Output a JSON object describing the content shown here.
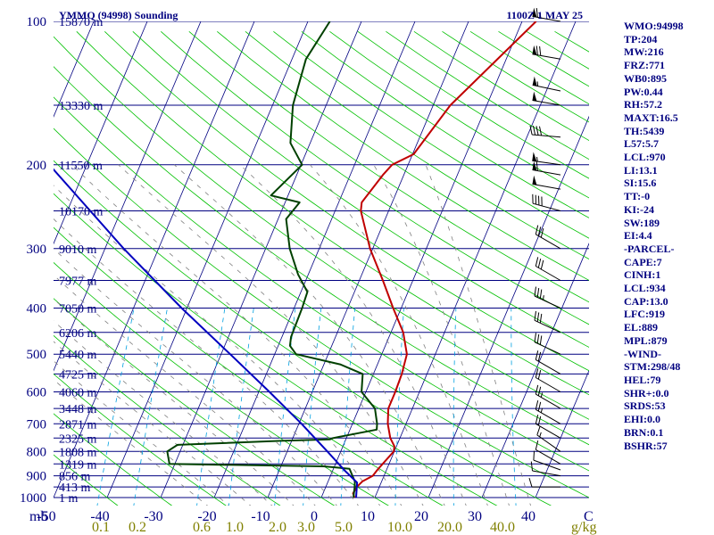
{
  "header": {
    "station": "YMMQ (94998) Sounding",
    "time": "1100Z  1 MAY 25"
  },
  "axis": {
    "y_unit": "mb",
    "x_unit": "C",
    "mixing_unit": "g/kg"
  },
  "chart_data": {
    "type": "line",
    "title": "YMMQ (94998) Sounding",
    "y_scale": "log-pressure",
    "ylim": [
      1000,
      100
    ],
    "xlim": [
      -50,
      50
    ],
    "pressure_ticks": [
      100,
      200,
      300,
      400,
      500,
      600,
      700,
      800,
      900,
      1000
    ],
    "temperature_ticks": [
      -50,
      -40,
      -30,
      -20,
      -10,
      0,
      10,
      20,
      30,
      40
    ],
    "mixing_ratio_ticks": [
      "0.1",
      "0.2",
      "0.6",
      "1.0",
      "2.0",
      "3.0",
      "5.0",
      "10.0",
      "20.0",
      "40.0"
    ],
    "height_labels": [
      {
        "p": 100,
        "label": "15870 m"
      },
      {
        "p": 150,
        "label": "13330 m"
      },
      {
        "p": 200,
        "label": "11550 m"
      },
      {
        "p": 250,
        "label": "10170 m"
      },
      {
        "p": 300,
        "label": "9010 m"
      },
      {
        "p": 350,
        "label": "7977 m"
      },
      {
        "p": 400,
        "label": "7050 m"
      },
      {
        "p": 450,
        "label": "6206 m"
      },
      {
        "p": 500,
        "label": "5440 m"
      },
      {
        "p": 550,
        "label": "4725 m"
      },
      {
        "p": 600,
        "label": "4060 m"
      },
      {
        "p": 650,
        "label": "3448 m"
      },
      {
        "p": 700,
        "label": "2871 m"
      },
      {
        "p": 750,
        "label": "2325 m"
      },
      {
        "p": 800,
        "label": "1808 m"
      },
      {
        "p": 850,
        "label": "1319 m"
      },
      {
        "p": 900,
        "label": "856 m"
      },
      {
        "p": 950,
        "label": "413 m"
      },
      {
        "p": 1000,
        "label": "1 m"
      }
    ],
    "series": [
      {
        "role": "temperature",
        "points": [
          [
            1000,
            6.2
          ],
          [
            980,
            5.6
          ],
          [
            950,
            5.8
          ],
          [
            925,
            6.4
          ],
          [
            900,
            7.9
          ],
          [
            875,
            8.3
          ],
          [
            850,
            8.8
          ],
          [
            800,
            9.9
          ],
          [
            780,
            9.6
          ],
          [
            750,
            8.2
          ],
          [
            700,
            6.6
          ],
          [
            650,
            5.5
          ],
          [
            600,
            5.5
          ],
          [
            550,
            5.3
          ],
          [
            500,
            4.7
          ],
          [
            450,
            2.3
          ],
          [
            400,
            -1.5
          ],
          [
            350,
            -5.6
          ],
          [
            300,
            -10.5
          ],
          [
            250,
            -15.2
          ],
          [
            240,
            -15.7
          ],
          [
            210,
            -13.9
          ],
          [
            200,
            -13.0
          ],
          [
            190,
            -9.8
          ],
          [
            150,
            -6.8
          ],
          [
            100,
            2.6
          ]
        ]
      },
      {
        "role": "dewpoint",
        "points": [
          [
            1000,
            6.0
          ],
          [
            950,
            5.4
          ],
          [
            925,
            5.0
          ],
          [
            900,
            4.1
          ],
          [
            870,
            3.0
          ],
          [
            860,
            -2.0
          ],
          [
            850,
            -31.0
          ],
          [
            800,
            -32.4
          ],
          [
            775,
            -31.0
          ],
          [
            760,
            -12.0
          ],
          [
            755,
            -3.0
          ],
          [
            750,
            -2.5
          ],
          [
            720,
            5.0
          ],
          [
            700,
            4.6
          ],
          [
            650,
            3.0
          ],
          [
            600,
            -0.8
          ],
          [
            550,
            -2.0
          ],
          [
            525,
            -7.0
          ],
          [
            500,
            -16.0
          ],
          [
            480,
            -17.8
          ],
          [
            460,
            -18.3
          ],
          [
            400,
            -18.5
          ],
          [
            370,
            -18.8
          ],
          [
            340,
            -21.9
          ],
          [
            300,
            -25.5
          ],
          [
            260,
            -28.5
          ],
          [
            240,
            -27.3
          ],
          [
            232,
            -33.2
          ],
          [
            200,
            -29.8
          ],
          [
            180,
            -33.7
          ],
          [
            150,
            -36.2
          ],
          [
            120,
            -37.4
          ],
          [
            100,
            -35.9
          ]
        ]
      },
      {
        "role": "parcel",
        "points": [
          [
            1000,
            6.5
          ],
          [
            930,
            5.5
          ],
          [
            880,
            2.4
          ],
          [
            800,
            -2.5
          ],
          [
            700,
            -9.5
          ],
          [
            600,
            -18.0
          ],
          [
            500,
            -28.3
          ],
          [
            400,
            -41.0
          ],
          [
            300,
            -56.5
          ],
          [
            200,
            -77.0
          ],
          [
            120,
            -95.5
          ]
        ]
      }
    ]
  },
  "winds": [
    {
      "p": 100,
      "dir": 280,
      "spd": 65
    },
    {
      "p": 120,
      "dir": 280,
      "spd": 70
    },
    {
      "p": 140,
      "dir": 282,
      "spd": 55
    },
    {
      "p": 150,
      "dir": 280,
      "spd": 50
    },
    {
      "p": 175,
      "dir": 275,
      "spd": 40
    },
    {
      "p": 200,
      "dir": 278,
      "spd": 55
    },
    {
      "p": 210,
      "dir": 280,
      "spd": 60
    },
    {
      "p": 225,
      "dir": 280,
      "spd": 50
    },
    {
      "p": 250,
      "dir": 285,
      "spd": 40
    },
    {
      "p": 300,
      "dir": 300,
      "spd": 30
    },
    {
      "p": 350,
      "dir": 300,
      "spd": 30
    },
    {
      "p": 400,
      "dir": 295,
      "spd": 35
    },
    {
      "p": 450,
      "dir": 295,
      "spd": 30
    },
    {
      "p": 500,
      "dir": 295,
      "spd": 30
    },
    {
      "p": 550,
      "dir": 300,
      "spd": 20
    },
    {
      "p": 600,
      "dir": 300,
      "spd": 20
    },
    {
      "p": 650,
      "dir": 300,
      "spd": 25
    },
    {
      "p": 700,
      "dir": 300,
      "spd": 25
    },
    {
      "p": 750,
      "dir": 300,
      "spd": 20
    },
    {
      "p": 800,
      "dir": 305,
      "spd": 15
    },
    {
      "p": 850,
      "dir": 300,
      "spd": 10
    },
    {
      "p": 875,
      "dir": 290,
      "spd": 10
    },
    {
      "p": 900,
      "dir": 280,
      "spd": 10
    },
    {
      "p": 950,
      "dir": 270,
      "spd": 10
    }
  ],
  "indices": [
    "WMO:94998",
    "TP:204",
    "MW:216",
    "FRZ:771",
    "WB0:895",
    "PW:0.44",
    "RH:57.2",
    "MAXT:16.5",
    "TH:5439",
    "L57:5.7",
    "LCL:970",
    "LI:13.1",
    "SI:15.6",
    "TT:-0",
    "KI:-24",
    "SW:189",
    "EI:4.4",
    "-PARCEL-",
    "CAPE:7",
    "CINH:1",
    "LCL:934",
    "CAP:13.0",
    "LFC:919",
    "EL:889",
    "MPL:879",
    "-WIND-",
    "STM:298/48",
    "HEL:79",
    "SHR+:0.0",
    "SRDS:53",
    "EHI:0.0",
    "BRN:0.1",
    "BSHR:57"
  ],
  "colors": {
    "isobar": "#000080",
    "skew_isotherm": "#000080",
    "dry_adiabat": "#00c000",
    "moist_adiabat": "#808080",
    "mixing_ratio": "#00a0e0",
    "temperature": "#c00000",
    "dewpoint": "#004000",
    "parcel": "#0000c0",
    "text": "#000080",
    "mixing_text": "#808000",
    "winds": "#000000"
  }
}
